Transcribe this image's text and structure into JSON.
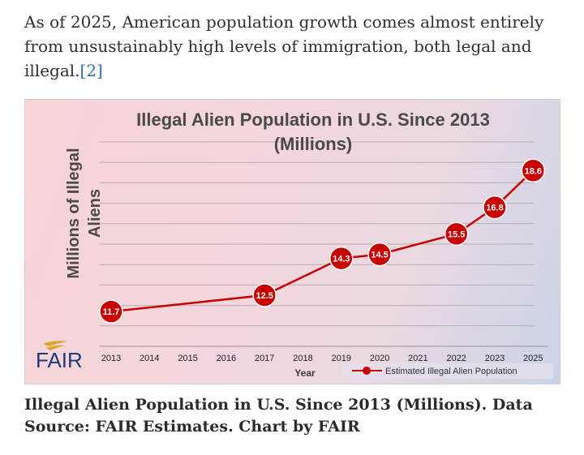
{
  "article": {
    "intro_text": "As of 2025, American population growth comes almost entirely from unsustainably high levels of immigration, both legal and illegal.",
    "citation": "[2]",
    "caption": "Illegal Alien Population in U.S. Since 2013 (Millions). Data Source: FAIR Estimates. Chart by FAIR"
  },
  "logo": {
    "text": "FAIR"
  },
  "colors": {
    "series": "#c80000",
    "title": "#4a4a4a",
    "logo": "#1f3a7a"
  },
  "chart_data": {
    "type": "line",
    "title_line1": "Illegal Alien Population in U.S. Since 2013",
    "title_line2": "(Millions)",
    "xlabel": "Year",
    "ylabel_line1": "Millions of Illegal",
    "ylabel_line2": "Aliens",
    "x_ticks": [
      "2013",
      "2014",
      "2015",
      "2016",
      "2017",
      "2018",
      "2019",
      "2020",
      "2021",
      "2022",
      "2023",
      "2025"
    ],
    "ylim": [
      10,
      20
    ],
    "grid": true,
    "legend_position": "bottom-right",
    "series": [
      {
        "name": "Estimated Illegal Alien Population",
        "points": [
          {
            "x": "2013",
            "y": 11.7,
            "label": "11.7"
          },
          {
            "x": "2017",
            "y": 12.5,
            "label": "12.5"
          },
          {
            "x": "2019",
            "y": 14.3,
            "label": "14.3"
          },
          {
            "x": "2020",
            "y": 14.5,
            "label": "14.5"
          },
          {
            "x": "2022",
            "y": 15.5,
            "label": "15.5"
          },
          {
            "x": "2023",
            "y": 16.8,
            "label": "16.8"
          },
          {
            "x": "2025",
            "y": 18.6,
            "label": "18.6"
          }
        ]
      }
    ]
  }
}
